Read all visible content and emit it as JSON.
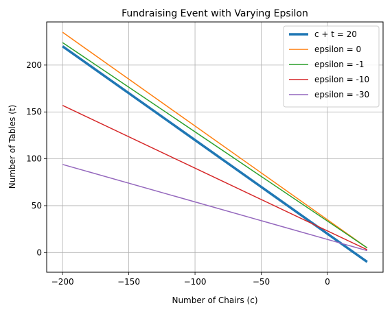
{
  "chart_data": {
    "type": "line",
    "title": "Fundraising Event with Varying Epsilon",
    "xlabel": "Number of Chairs (c)",
    "ylabel": "Number of Tables (t)",
    "xlim": [
      -212,
      42
    ],
    "ylim": [
      -21,
      246
    ],
    "xticks": [
      -200,
      -150,
      -100,
      -50,
      0
    ],
    "xtick_labels": [
      "−200",
      "−150",
      "−100",
      "−50",
      "0"
    ],
    "yticks": [
      0,
      50,
      100,
      150,
      200
    ],
    "ytick_labels": [
      "0",
      "50",
      "100",
      "150",
      "200"
    ],
    "grid": true,
    "legend_position": "top-right",
    "series": [
      {
        "name": "c + t = 20",
        "color": "#1f77b4",
        "width": 3.5,
        "x": [
          -200,
          30
        ],
        "y": [
          220,
          -10
        ]
      },
      {
        "name": "epsilon = 0",
        "color": "#ff7f0e",
        "width": 1.5,
        "x": [
          -200,
          30
        ],
        "y": [
          235,
          5
        ]
      },
      {
        "name": "epsilon = -1",
        "color": "#2ca02c",
        "width": 1.5,
        "x": [
          -200,
          30
        ],
        "y": [
          224,
          5
        ]
      },
      {
        "name": "epsilon = -10",
        "color": "#d62728",
        "width": 1.5,
        "x": [
          -200,
          30
        ],
        "y": [
          157,
          3
        ]
      },
      {
        "name": "epsilon = -30",
        "color": "#9467bd",
        "width": 1.5,
        "x": [
          -200,
          30
        ],
        "y": [
          94,
          2
        ]
      }
    ]
  }
}
